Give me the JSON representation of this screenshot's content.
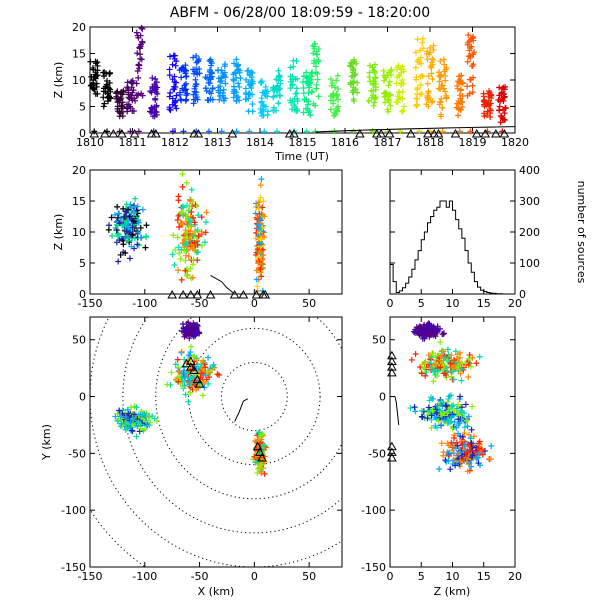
{
  "chart_data": [
    {
      "panel": "time-height",
      "type": "scatter",
      "title": "ABFM - 06/28/00 18:09:59 - 18:20:00",
      "xlabel": "Time (UT)",
      "ylabel": "Z (km)",
      "xlim": [
        1810,
        1820
      ],
      "ylim": [
        0,
        20
      ],
      "xticks": [
        "1810",
        "1811",
        "1812",
        "1813",
        "1814",
        "1815",
        "1816",
        "1817",
        "1818",
        "1819",
        "1820"
      ],
      "yticks": [
        "0",
        "5",
        "10",
        "15",
        "20"
      ],
      "clusters": [
        {
          "t": 1810.1,
          "z": [
            7,
            14
          ],
          "color": "#000000"
        },
        {
          "t": 1810.4,
          "z": [
            5,
            12
          ],
          "color": "#000000"
        },
        {
          "t": 1810.7,
          "z": [
            3,
            8
          ],
          "color": "#330033"
        },
        {
          "t": 1810.95,
          "z": [
            4,
            10
          ],
          "color": "#4b0066"
        },
        {
          "t": 1811.15,
          "z": [
            6,
            20
          ],
          "color": "#5a007f"
        },
        {
          "t": 1811.5,
          "z": [
            3,
            11
          ],
          "color": "#4400aa"
        },
        {
          "t": 1811.95,
          "z": [
            4,
            15
          ],
          "color": "#1500ff"
        },
        {
          "t": 1812.2,
          "z": [
            6,
            13
          ],
          "color": "#0030ff"
        },
        {
          "t": 1812.5,
          "z": [
            5,
            16
          ],
          "color": "#004cff"
        },
        {
          "t": 1812.8,
          "z": [
            6,
            14
          ],
          "color": "#0066ff"
        },
        {
          "t": 1813.1,
          "z": [
            6,
            13
          ],
          "color": "#0090ff"
        },
        {
          "t": 1813.45,
          "z": [
            6,
            14
          ],
          "color": "#00a0ff"
        },
        {
          "t": 1813.75,
          "z": [
            4,
            12
          ],
          "color": "#00b0ff"
        },
        {
          "t": 1814.1,
          "z": [
            3,
            10
          ],
          "color": "#00ccff"
        },
        {
          "t": 1814.4,
          "z": [
            4,
            12
          ],
          "color": "#00ddcc"
        },
        {
          "t": 1814.8,
          "z": [
            4,
            14
          ],
          "color": "#00e5b0"
        },
        {
          "t": 1815.1,
          "z": [
            3,
            12
          ],
          "color": "#00ee88"
        },
        {
          "t": 1815.3,
          "z": [
            5,
            17
          ],
          "color": "#22ee66"
        },
        {
          "t": 1815.75,
          "z": [
            3,
            11
          ],
          "color": "#44ee44"
        },
        {
          "t": 1816.2,
          "z": [
            6,
            14
          ],
          "color": "#66dd22"
        },
        {
          "t": 1816.65,
          "z": [
            5,
            13
          ],
          "color": "#77ee00"
        },
        {
          "t": 1817.0,
          "z": [
            4,
            12
          ],
          "color": "#99ee00"
        },
        {
          "t": 1817.3,
          "z": [
            4,
            13
          ],
          "color": "#ccee00"
        },
        {
          "t": 1817.75,
          "z": [
            5,
            18
          ],
          "color": "#ffcc00"
        },
        {
          "t": 1818.0,
          "z": [
            4,
            17
          ],
          "color": "#ffaa00"
        },
        {
          "t": 1818.3,
          "z": [
            3,
            14
          ],
          "color": "#ff9900"
        },
        {
          "t": 1818.7,
          "z": [
            3,
            11
          ],
          "color": "#ff7700"
        },
        {
          "t": 1818.95,
          "z": [
            6,
            19
          ],
          "color": "#ff5500"
        },
        {
          "t": 1819.35,
          "z": [
            3,
            8
          ],
          "color": "#ee2200"
        },
        {
          "t": 1819.7,
          "z": [
            2,
            9
          ],
          "color": "#dd0000"
        }
      ],
      "ground_stations_t": [
        1810.1,
        1810.35,
        1810.55,
        1810.75,
        1811.05,
        1811.45,
        1811.55,
        1812.45,
        1812.55,
        1813.35,
        1814.7,
        1814.8,
        1816.35,
        1816.75,
        1816.85,
        1817.05,
        1817.55,
        1817.95,
        1818.1,
        1818.2,
        1818.6,
        1819.1,
        1819.3,
        1819.55,
        1819.75
      ]
    },
    {
      "panel": "x-height",
      "type": "scatter",
      "xlabel": "",
      "ylabel": "Z (km)",
      "xlim": [
        -150,
        80
      ],
      "ylim": [
        0,
        20
      ],
      "xticks": [
        "-150",
        "-100",
        "-50",
        "0",
        "50"
      ],
      "yticks": [
        "0",
        "5",
        "10",
        "15",
        "20"
      ],
      "clusters": [
        {
          "x": -115,
          "z": 11,
          "sx": 12,
          "sz": 4,
          "colors": [
            "#000000",
            "#2020aa",
            "#00a0ff",
            "#00dd88"
          ]
        },
        {
          "x": -60,
          "z": 10,
          "sx": 10,
          "sz": 6,
          "colors": [
            "#ff2200",
            "#ff8800",
            "#00ddaa",
            "#88ee00"
          ]
        },
        {
          "x": 5,
          "z": 9,
          "sx": 3,
          "sz": 6,
          "colors": [
            "#ff2200",
            "#ff8800",
            "#ffcc00",
            "#00aaff"
          ]
        }
      ],
      "trail_x": [
        -40,
        -30,
        -25,
        -18
      ],
      "trail_z": [
        3,
        2,
        1,
        0
      ],
      "ground_stations_x": [
        -75,
        -65,
        -58,
        -52,
        -40,
        -18,
        -10,
        2,
        8,
        10
      ]
    },
    {
      "panel": "height-histogram",
      "type": "bar",
      "xlabel": "",
      "ylabel": "number of sources",
      "xlim": [
        0,
        20
      ],
      "ylim": [
        0,
        400
      ],
      "xticks": [
        "0",
        "5",
        "10",
        "15",
        "20"
      ],
      "yticks": [
        "0",
        "100",
        "200",
        "300",
        "400"
      ],
      "bins": [
        0,
        0.5,
        1,
        1.5,
        2,
        2.5,
        3,
        3.5,
        4,
        4.5,
        5,
        5.5,
        6,
        6.5,
        7,
        7.5,
        8,
        8.5,
        9,
        9.5,
        10,
        10.5,
        11,
        11.5,
        12,
        12.5,
        13,
        13.5,
        14,
        14.5,
        15,
        15.5,
        16,
        16.5,
        17,
        17.5,
        18,
        18.5,
        19,
        19.5
      ],
      "counts": [
        95,
        40,
        5,
        10,
        20,
        35,
        55,
        80,
        110,
        140,
        175,
        200,
        230,
        250,
        270,
        280,
        300,
        300,
        280,
        300,
        270,
        240,
        210,
        180,
        140,
        100,
        70,
        40,
        22,
        12,
        8,
        5,
        3,
        2,
        1,
        1,
        0,
        0,
        0,
        0
      ]
    },
    {
      "panel": "plan-view",
      "type": "scatter",
      "xlabel": "X (km)",
      "ylabel": "Y (km)",
      "xlim": [
        -150,
        80
      ],
      "ylim": [
        -150,
        70
      ],
      "xticks": [
        "-150",
        "-100",
        "-50",
        "0",
        "50"
      ],
      "yticks": [
        "-150",
        "-100",
        "-50",
        "0",
        "50"
      ],
      "range_rings_km": [
        30,
        60,
        90,
        120,
        150,
        180
      ],
      "clusters": [
        {
          "x": -58,
          "y": 58,
          "sx": 6,
          "sy": 4,
          "colors": [
            "#5a007f",
            "#4400aa"
          ]
        },
        {
          "x": -55,
          "y": 20,
          "sx": 14,
          "sy": 14,
          "colors": [
            "#ff2200",
            "#ff8800",
            "#00ddaa",
            "#88ee00",
            "#00aaff"
          ]
        },
        {
          "x": -110,
          "y": -20,
          "sx": 12,
          "sy": 8,
          "colors": [
            "#00ddaa",
            "#00aaff",
            "#88ee00",
            "#2020aa"
          ]
        },
        {
          "x": 5,
          "y": -50,
          "sx": 4,
          "sy": 14,
          "colors": [
            "#ff2200",
            "#ff8800",
            "#88ee00",
            "#00ddaa"
          ]
        }
      ],
      "ground_stations_x": [
        -62,
        -58,
        -55,
        -52,
        -50,
        -58,
        3,
        5,
        7
      ],
      "ground_stations_y": [
        28,
        25,
        22,
        14,
        10,
        30,
        -45,
        -50,
        -55
      ]
    },
    {
      "panel": "height-y",
      "type": "scatter",
      "xlabel": "Z (km)",
      "ylabel": "",
      "xlim": [
        0,
        20
      ],
      "ylim": [
        -150,
        70
      ],
      "xticks": [
        "0",
        "5",
        "10",
        "15",
        "20"
      ],
      "yticks": [
        "-150",
        "-100",
        "-50",
        "0",
        "50"
      ],
      "clusters": [
        {
          "z": 6,
          "y": 58,
          "sz": 1.5,
          "sy": 4,
          "colors": [
            "#5a007f",
            "#4400aa"
          ]
        },
        {
          "z": 9,
          "y": 28,
          "sz": 3.5,
          "sy": 10,
          "colors": [
            "#ff2200",
            "#ff8800",
            "#00ddaa",
            "#88ee00"
          ]
        },
        {
          "z": 9,
          "y": -15,
          "sz": 3,
          "sy": 10,
          "colors": [
            "#00ddaa",
            "#00aaff",
            "#88ee00",
            "#2020aa"
          ]
        },
        {
          "z": 12,
          "y": -50,
          "sz": 3,
          "sy": 12,
          "colors": [
            "#ff2200",
            "#ff8800",
            "#2020aa",
            "#00aaff"
          ]
        }
      ],
      "ground_stations_y": [
        35,
        30,
        25,
        20,
        -45,
        -50,
        -55
      ]
    }
  ]
}
